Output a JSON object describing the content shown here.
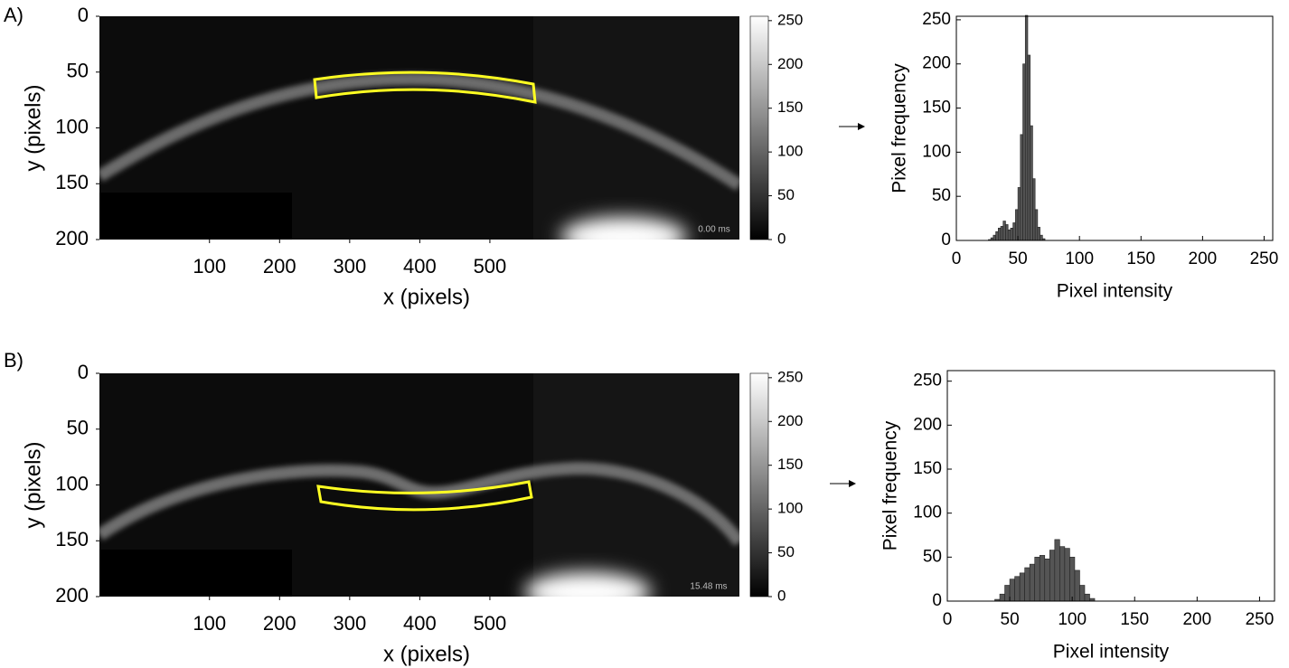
{
  "chart_data": [
    {
      "type": "image",
      "panel_label": "A)",
      "annotation": "0.00 ms",
      "xlabel": "x (pixels)",
      "ylabel": "y (pixels)",
      "xlim": [
        -57,
        856
      ],
      "xticks": [
        100,
        200,
        300,
        400,
        500
      ],
      "ylim": [
        0,
        200
      ],
      "yticks": [
        0,
        50,
        100,
        150,
        200
      ],
      "clim": [
        0,
        255
      ],
      "cticks": [
        0,
        50,
        100,
        150,
        200,
        250
      ]
    },
    {
      "type": "histogram",
      "xlabel": "Pixel intensity",
      "ylabel": "Pixel frequency",
      "color": "#555555",
      "bins": [
        26,
        28,
        30,
        32,
        34,
        36,
        38,
        40,
        42,
        44,
        46,
        48,
        50,
        52,
        54,
        56,
        58,
        60,
        62,
        64,
        66,
        68,
        70,
        72
      ],
      "values": [
        1,
        3,
        6,
        10,
        14,
        16,
        22,
        18,
        12,
        14,
        20,
        35,
        60,
        120,
        200,
        255,
        210,
        130,
        70,
        35,
        15,
        6,
        2
      ],
      "xlim": [
        0,
        257
      ],
      "xticks": [
        0,
        50,
        100,
        150,
        200,
        250
      ],
      "ylim": [
        0,
        254
      ],
      "yticks": [
        0,
        50,
        100,
        150,
        200,
        250
      ]
    },
    {
      "type": "image",
      "panel_label": "B)",
      "annotation": "15.48 ms",
      "xlabel": "x (pixels)",
      "ylabel": "y (pixels)",
      "xlim": [
        -57,
        856
      ],
      "xticks": [
        100,
        200,
        300,
        400,
        500
      ],
      "ylim": [
        0,
        200
      ],
      "yticks": [
        0,
        50,
        100,
        150,
        200
      ],
      "clim": [
        0,
        255
      ],
      "cticks": [
        0,
        50,
        100,
        150,
        200,
        250
      ]
    },
    {
      "type": "histogram",
      "xlabel": "Pixel intensity",
      "ylabel": "Pixel frequency",
      "color": "#555555",
      "bins": [
        38,
        42,
        46,
        50,
        54,
        58,
        62,
        66,
        70,
        74,
        78,
        82,
        86,
        90,
        94,
        98,
        102,
        106,
        110,
        114,
        118
      ],
      "values": [
        2,
        8,
        18,
        25,
        28,
        32,
        38,
        42,
        50,
        52,
        48,
        58,
        70,
        62,
        60,
        50,
        35,
        18,
        8,
        3
      ],
      "xlim": [
        0,
        262
      ],
      "xticks": [
        0,
        50,
        100,
        150,
        200,
        250
      ],
      "ylim": [
        0,
        262
      ],
      "yticks": [
        0,
        50,
        100,
        150,
        200,
        250
      ]
    }
  ]
}
